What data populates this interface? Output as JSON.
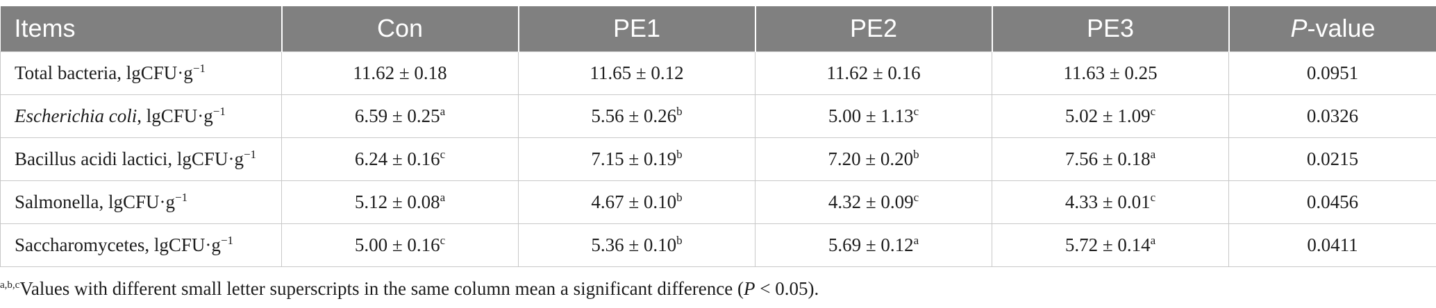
{
  "table": {
    "headers": [
      "Items",
      "Con",
      "PE1",
      "PE2",
      "PE3",
      "P",
      "-value"
    ],
    "rows": [
      {
        "item_main": "Total bacteria",
        "item_unit": ", lgCFU·g",
        "item_exp": "−1",
        "cells": [
          {
            "value": "11.62 ± 0.18",
            "sup": ""
          },
          {
            "value": "11.65 ± 0.12",
            "sup": ""
          },
          {
            "value": "11.62 ± 0.16",
            "sup": ""
          },
          {
            "value": "11.63 ± 0.25",
            "sup": ""
          }
        ],
        "p": "0.0951"
      },
      {
        "item_main": "Escherichia coli",
        "item_unit": ", lgCFU·g",
        "item_exp": "−1",
        "cells": [
          {
            "value": "6.59 ± 0.25",
            "sup": "a"
          },
          {
            "value": "5.56 ± 0.26",
            "sup": "b"
          },
          {
            "value": "5.00 ± 1.13",
            "sup": "c"
          },
          {
            "value": "5.02 ± 1.09",
            "sup": "c"
          }
        ],
        "p": "0.0326"
      },
      {
        "item_main": "Bacillus acidi lactici",
        "item_unit": ", lgCFU·g",
        "item_exp": "−1",
        "cells": [
          {
            "value": "6.24 ± 0.16",
            "sup": "c"
          },
          {
            "value": "7.15 ± 0.19",
            "sup": "b"
          },
          {
            "value": "7.20 ± 0.20",
            "sup": "b"
          },
          {
            "value": "7.56 ± 0.18",
            "sup": "a"
          }
        ],
        "p": "0.0215"
      },
      {
        "item_main": "Salmonella",
        "item_unit": ", lgCFU·g",
        "item_exp": "−1",
        "cells": [
          {
            "value": "5.12 ± 0.08",
            "sup": "a"
          },
          {
            "value": "4.67 ± 0.10",
            "sup": "b"
          },
          {
            "value": "4.32 ± 0.09",
            "sup": "c"
          },
          {
            "value": "4.33 ± 0.01",
            "sup": "c"
          }
        ],
        "p": "0.0456"
      },
      {
        "item_main": "Saccharomycetes",
        "item_unit": ", lgCFU·g",
        "item_exp": "−1",
        "cells": [
          {
            "value": "5.00 ± 0.16",
            "sup": "c"
          },
          {
            "value": "5.36 ± 0.10",
            "sup": "b"
          },
          {
            "value": "5.69 ± 0.12",
            "sup": "a"
          },
          {
            "value": "5.72 ± 0.14",
            "sup": "a"
          }
        ],
        "p": "0.0411"
      }
    ]
  },
  "footnote": {
    "sup": "a,b,c",
    "text": "Values with different small letter superscripts in the same column mean a significant difference (",
    "p_symbol": "P",
    "tail": " < 0.05)."
  },
  "colors": {
    "header_bg": "#808080",
    "header_text": "#ffffff",
    "border": "#c8c8c8",
    "text": "#1c1c1c"
  }
}
